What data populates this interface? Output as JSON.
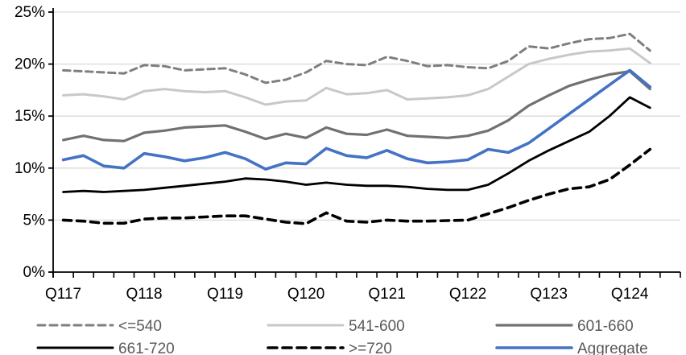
{
  "chart_data": {
    "type": "line",
    "title": "",
    "xlabel": "",
    "ylabel": "",
    "ylim": [
      0,
      25
    ],
    "y_ticks": [
      {
        "value": 0,
        "label": "0%"
      },
      {
        "value": 5,
        "label": "5%"
      },
      {
        "value": 10,
        "label": "10%"
      },
      {
        "value": 15,
        "label": "15%"
      },
      {
        "value": 20,
        "label": "20%"
      },
      {
        "value": 25,
        "label": "25%"
      }
    ],
    "grid": "horizontal",
    "gridline_color": "#d9d9d9",
    "axis_color": "#000000",
    "categories": [
      "Q117",
      "Q217",
      "Q317",
      "Q417",
      "Q118",
      "Q218",
      "Q318",
      "Q418",
      "Q119",
      "Q219",
      "Q319",
      "Q419",
      "Q120",
      "Q220",
      "Q320",
      "Q420",
      "Q121",
      "Q221",
      "Q321",
      "Q421",
      "Q122",
      "Q222",
      "Q322",
      "Q422",
      "Q123",
      "Q223",
      "Q323",
      "Q423",
      "Q124",
      "Q224"
    ],
    "x_tick_labels_shown": [
      "Q117",
      "Q118",
      "Q119",
      "Q120",
      "Q121",
      "Q122",
      "Q123",
      "Q124"
    ],
    "x_label_every": 4,
    "legend_position": "bottom",
    "series": [
      {
        "name": "<=540",
        "color": "#7f7f7f",
        "style": "dashed",
        "width": 3,
        "values": [
          19.4,
          19.3,
          19.2,
          19.1,
          19.9,
          19.8,
          19.4,
          19.5,
          19.6,
          19.0,
          18.2,
          18.5,
          19.2,
          20.3,
          20.0,
          19.9,
          20.7,
          20.3,
          19.8,
          19.9,
          19.7,
          19.6,
          20.3,
          21.7,
          21.5,
          22.0,
          22.4,
          22.5,
          22.9,
          21.3
        ]
      },
      {
        "name": "541-600",
        "color": "#c8c8c8",
        "style": "solid",
        "width": 3,
        "values": [
          17.0,
          17.1,
          16.9,
          16.6,
          17.4,
          17.6,
          17.4,
          17.3,
          17.4,
          16.8,
          16.1,
          16.4,
          16.5,
          17.7,
          17.1,
          17.2,
          17.5,
          16.6,
          16.7,
          16.8,
          17.0,
          17.6,
          18.8,
          20.0,
          20.5,
          20.9,
          21.2,
          21.3,
          21.5,
          20.1
        ]
      },
      {
        "name": "601-660",
        "color": "#757070",
        "style": "solid",
        "width": 3.2,
        "values": [
          12.7,
          13.1,
          12.7,
          12.6,
          13.4,
          13.6,
          13.9,
          14.0,
          14.1,
          13.5,
          12.8,
          13.3,
          12.9,
          13.9,
          13.3,
          13.2,
          13.7,
          13.1,
          13.0,
          12.9,
          13.1,
          13.6,
          14.6,
          16.0,
          17.0,
          17.9,
          18.5,
          19.0,
          19.3,
          17.6
        ]
      },
      {
        "name": "661-720",
        "color": "#000000",
        "style": "solid",
        "width": 2.8,
        "values": [
          7.7,
          7.8,
          7.7,
          7.8,
          7.9,
          8.1,
          8.3,
          8.5,
          8.7,
          9.0,
          8.9,
          8.7,
          8.4,
          8.6,
          8.4,
          8.3,
          8.3,
          8.2,
          8.0,
          7.9,
          7.9,
          8.4,
          9.5,
          10.7,
          11.7,
          12.6,
          13.5,
          15.0,
          16.8,
          15.8
        ]
      },
      {
        "name": ">=720",
        "color": "#000000",
        "style": "dashed",
        "width": 3.6,
        "values": [
          5.0,
          4.9,
          4.7,
          4.7,
          5.1,
          5.2,
          5.2,
          5.3,
          5.4,
          5.4,
          5.1,
          4.8,
          4.65,
          5.7,
          4.9,
          4.8,
          5.0,
          4.9,
          4.9,
          4.95,
          5.0,
          5.6,
          6.2,
          6.9,
          7.5,
          8.0,
          8.2,
          8.9,
          10.3,
          11.8
        ]
      },
      {
        "name": "Aggregate",
        "color": "#4472c4",
        "style": "solid",
        "width": 3.6,
        "values": [
          10.8,
          11.2,
          10.2,
          10.0,
          11.4,
          11.1,
          10.7,
          11.0,
          11.5,
          10.9,
          9.9,
          10.5,
          10.4,
          11.9,
          11.2,
          11.0,
          11.7,
          10.9,
          10.5,
          10.6,
          10.8,
          11.8,
          11.5,
          12.4,
          13.8,
          15.2,
          16.6,
          18.0,
          19.4,
          17.8
        ]
      }
    ],
    "legend": {
      "text_color": "#595959",
      "rows": [
        [
          "<=540",
          "541-600",
          "601-660"
        ],
        [
          "661-720",
          ">=720",
          "Aggregate"
        ]
      ]
    }
  }
}
